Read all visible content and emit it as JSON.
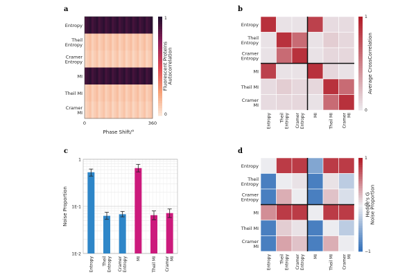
{
  "panel_labels": [
    "a",
    "b",
    "c",
    "d"
  ],
  "chart_data": [
    {
      "panel": "a",
      "type": "heatmap",
      "rows": [
        "Entropy",
        "Theil\nEntropy",
        "Cramer\nEntropy",
        "MI",
        "Theil MI",
        "Cramer\nMI"
      ],
      "row_levels": [
        0.95,
        0.12,
        0.1,
        0.95,
        0.12,
        0.1
      ],
      "xlabel": "Phase Shift/°",
      "xtick_labels": [
        "0",
        "360"
      ],
      "xlim": [
        0,
        360
      ],
      "colorbar": {
        "label": "Fluorescent Proteins\nAutocorrelation",
        "ticks": [
          "0",
          "1"
        ],
        "range": [
          0,
          1
        ]
      }
    },
    {
      "panel": "b",
      "type": "heatmap",
      "labels": [
        "Entropy",
        "Theil\nEntropy",
        "Cramer\nEntropy",
        "MI",
        "Theil MI",
        "Cramer\nMI"
      ],
      "matrix": [
        [
          0.9,
          0.05,
          0.05,
          0.82,
          0.08,
          0.08
        ],
        [
          0.05,
          0.9,
          0.62,
          0.05,
          0.15,
          0.1
        ],
        [
          0.05,
          0.62,
          0.9,
          0.05,
          0.1,
          0.1
        ],
        [
          0.82,
          0.05,
          0.05,
          0.9,
          0.1,
          0.05
        ],
        [
          0.08,
          0.15,
          0.1,
          0.1,
          0.9,
          0.62
        ],
        [
          0.08,
          0.1,
          0.1,
          0.05,
          0.62,
          0.9
        ]
      ],
      "colorbar": {
        "label": "Average CrossCorrelation",
        "ticks": [
          "0",
          "1"
        ],
        "range": [
          0,
          1
        ]
      }
    },
    {
      "panel": "c",
      "type": "bar",
      "categories": [
        "Entropy",
        "Theil\nEntropy",
        "Cramer\nEntropy",
        "MI",
        "Theil MI",
        "Cramer\nMI"
      ],
      "values": [
        0.53,
        0.063,
        0.068,
        0.65,
        0.065,
        0.072
      ],
      "error_low": [
        0.44,
        0.053,
        0.06,
        0.54,
        0.052,
        0.058
      ],
      "error_high": [
        0.62,
        0.075,
        0.078,
        0.78,
        0.08,
        0.088
      ],
      "bar_colors": [
        "#2e86c8",
        "#2e86c8",
        "#2e86c8",
        "#cc1a7c",
        "#cc1a7c",
        "#cc1a7c"
      ],
      "ylabel": "Noise Proportion",
      "yscale": "log",
      "ylim": [
        0.01,
        1
      ],
      "ytick_labels": [
        "1",
        "1E-1",
        "1E-2"
      ],
      "grid": true
    },
    {
      "panel": "d",
      "type": "heatmap",
      "labels": [
        "Entropy",
        "Theil\nEntropy",
        "Cramer\nEntropy",
        "MI",
        "Theil MI",
        "Cramer\nMI"
      ],
      "matrix": [
        [
          0.0,
          0.85,
          0.85,
          -0.55,
          0.85,
          0.85
        ],
        [
          -0.85,
          0.0,
          0.05,
          -0.85,
          0.05,
          -0.25
        ],
        [
          -0.85,
          0.3,
          0.0,
          -0.85,
          0.2,
          -0.1
        ],
        [
          0.45,
          0.85,
          0.85,
          0.0,
          0.85,
          0.85
        ],
        [
          -0.85,
          0.15,
          0.05,
          -0.85,
          0.0,
          -0.25
        ],
        [
          -0.85,
          0.35,
          0.2,
          -0.85,
          0.3,
          0.0
        ]
      ],
      "colorbar": {
        "label": "Hedge's G\nNoise Proportion",
        "ticks": [
          "1",
          "0",
          "−1"
        ],
        "range": [
          -1,
          1
        ]
      }
    }
  ]
}
